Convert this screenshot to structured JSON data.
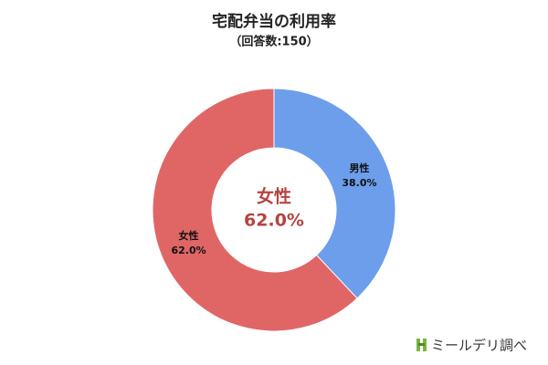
{
  "chart_data": {
    "type": "pie",
    "title": "宅配弁当の利用率",
    "subtitle": "（回答数:150）",
    "categories": [
      "男性",
      "女性"
    ],
    "values": [
      38.0,
      62.0
    ],
    "value_labels": [
      "38.0%",
      "62.0%"
    ],
    "colors": [
      "#6d9eeb",
      "#e06666"
    ],
    "donut": true,
    "source": "ミールデリ調べ"
  }
}
